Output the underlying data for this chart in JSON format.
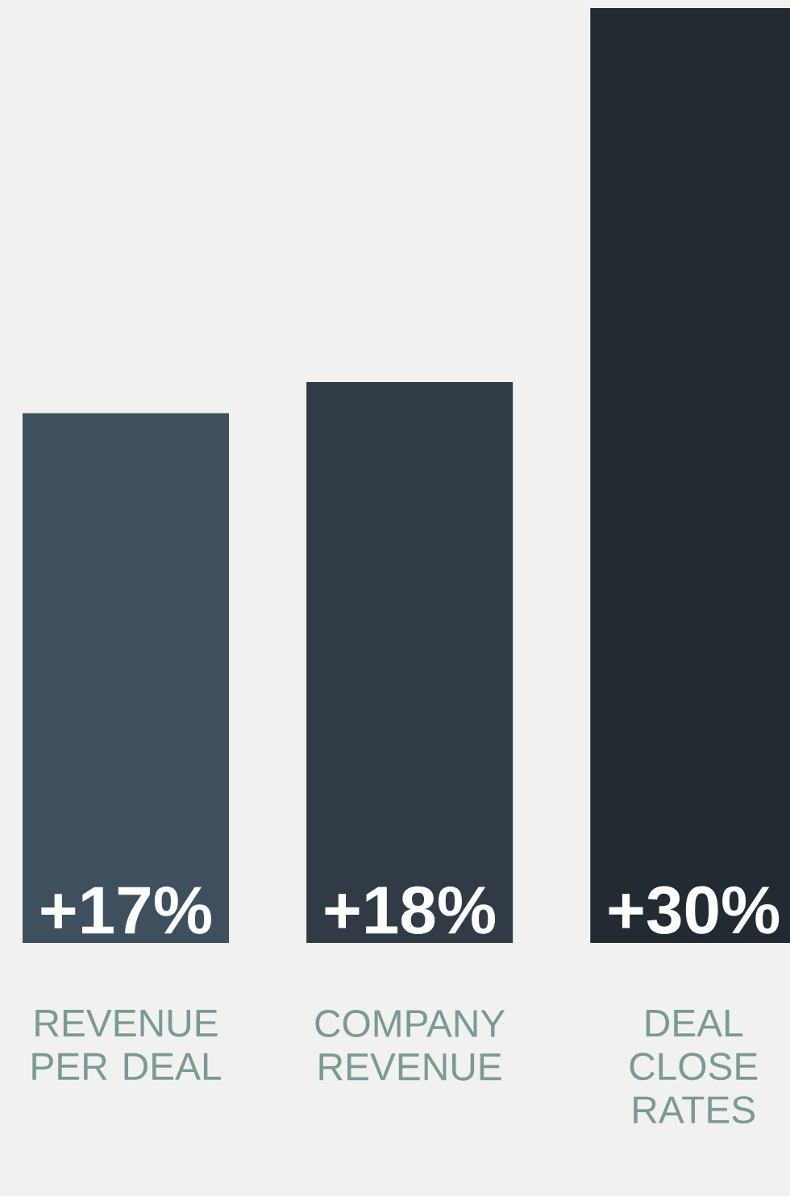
{
  "chart_data": {
    "type": "bar",
    "categories": [
      "REVENUE PER DEAL",
      "COMPANY REVENUE",
      "DEAL CLOSE RATES"
    ],
    "values": [
      17,
      18,
      30
    ],
    "value_labels": [
      "+17%",
      "+18%",
      "+30%"
    ],
    "colors": [
      "#3e4f5d",
      "#303b46",
      "#222a32"
    ]
  }
}
